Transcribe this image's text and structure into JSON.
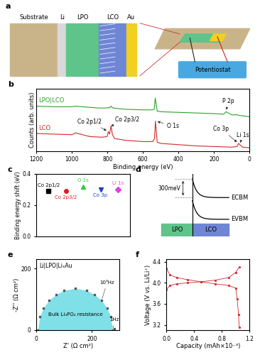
{
  "diagrams": [
    {
      "panel": "a",
      "type": "diagram",
      "layers": [
        {
          "label": "Substrate",
          "color": "#c9b48a"
        },
        {
          "label": "Li",
          "color": "#d9d9d9"
        },
        {
          "label": "LPO",
          "color": "#5fc48a"
        },
        {
          "label": "LCO",
          "color": "#6f86d6"
        },
        {
          "label": "Au",
          "color": "#f0d020"
        }
      ],
      "instrument": {
        "label": "Potentiostat",
        "color": "#4aa8e0"
      }
    },
    {
      "panel": "d",
      "type": "diagram",
      "levels": [
        "ECBM",
        "EVBM"
      ],
      "gap_label": "300meV",
      "regions": [
        {
          "label": "LPO",
          "color": "#5fc48a"
        },
        {
          "label": "LCO",
          "color": "#6f86d6"
        }
      ]
    }
  ],
  "chart_data": [
    {
      "panel": "b",
      "type": "line",
      "x_label": "Binding energy (eV)",
      "y_label": "Counts (arb. units)",
      "xlim": [
        1200,
        0
      ],
      "xticks": [
        1200,
        1000,
        800,
        600,
        400,
        200,
        0
      ],
      "ylim": [
        0,
        100
      ],
      "yticks": [],
      "tick_labels": "x",
      "series": [
        {
          "name": "LPO|LCO",
          "color": "#2ca02c",
          "x": [
            0,
            55,
            70,
            100,
            133,
            145,
            200,
            300,
            400,
            500,
            520,
            531,
            537,
            545,
            600,
            700,
            770,
            780,
            790,
            796,
            802,
            850,
            900,
            980,
            1000,
            1100,
            1200
          ],
          "values": [
            55,
            57,
            58,
            58,
            63,
            59,
            60,
            61,
            62,
            63,
            64,
            85,
            67,
            66,
            66,
            67,
            69,
            72,
            69,
            70,
            69,
            69,
            70,
            72,
            71,
            71,
            72
          ]
        },
        {
          "name": "LCO",
          "color": "#d62728",
          "x": [
            0,
            40,
            55,
            62,
            70,
            100,
            200,
            300,
            400,
            500,
            520,
            530,
            535,
            545,
            600,
            700,
            760,
            772,
            780,
            788,
            795,
            802,
            830,
            900,
            980,
            1000,
            1100,
            1200
          ],
          "values": [
            5,
            6,
            10,
            12,
            7,
            6,
            7,
            8,
            10,
            12,
            14,
            48,
            20,
            15,
            15,
            17,
            20,
            26,
            40,
            27,
            31,
            23,
            22,
            23,
            29,
            26,
            27,
            28
          ]
        }
      ],
      "annotations": [
        {
          "text": "Co 2p1/2",
          "x": 795,
          "y": 31,
          "text_x": 900,
          "text_y": 42
        },
        {
          "text": "Co 2p3/2",
          "x": 780,
          "y": 40,
          "text_x": 690,
          "text_y": 45
        },
        {
          "text": "O 1s",
          "x": 530,
          "y": 48,
          "text_x": 430,
          "text_y": 35
        },
        {
          "text": "P 2p",
          "x": 133,
          "y": 63,
          "text_x": 120,
          "text_y": 75
        },
        {
          "text": "Co 3p",
          "x": 62,
          "y": 12,
          "text_x": 160,
          "text_y": 30
        },
        {
          "text": "Li 1s",
          "x": 55,
          "y": 10,
          "text_x": 40,
          "text_y": 20
        }
      ]
    },
    {
      "panel": "c",
      "type": "scatter",
      "y_label": "Binding energy shift (eV)",
      "categories": [
        "Co 2p1/2",
        "Co 2p3/2",
        "O 1s",
        "Co 3p",
        "Li 1s"
      ],
      "values": [
        0.29,
        0.29,
        0.32,
        0.3,
        0.3
      ],
      "colors": [
        "#000000",
        "#e31a1c",
        "#2ecc40",
        "#1f3fbf",
        "#e040e0"
      ],
      "markers": [
        "square",
        "circle",
        "triangle_up",
        "triangle_down",
        "diamond"
      ],
      "ylim": [
        0.0,
        0.4
      ],
      "yticks": [
        0.0,
        0.2,
        0.4
      ],
      "tick_labels": "y"
    },
    {
      "panel": "e",
      "type": "scatter",
      "title": "Li|LPO|LiₓAu",
      "x_label": "Z' (Ω cm²)",
      "y_label": "-Z'' (Ω cm²)",
      "x": [
        5,
        12,
        25,
        45,
        70,
        100,
        140,
        180,
        210,
        235,
        255,
        268,
        275,
        280
      ],
      "values": [
        0,
        43,
        71,
        96,
        115,
        129,
        135,
        129,
        115,
        96,
        71,
        43,
        0,
        5
      ],
      "color": "#555555",
      "fill_color": "#7fe0e8",
      "xlim": [
        0,
        300
      ],
      "xticks": [
        0,
        200
      ],
      "ylim": [
        0,
        230
      ],
      "yticks": [
        0,
        200
      ],
      "annotations": [
        {
          "text": "10³Hz",
          "x": 235,
          "y": 96,
          "text_x": 255,
          "text_y": 150
        },
        {
          "text": "1Hz",
          "x": 275,
          "y": 0,
          "text_x": 282,
          "text_y": 30
        },
        {
          "text": "Bulk Li₃PO₄ resistance",
          "x": 140,
          "y": 50
        }
      ]
    },
    {
      "panel": "f",
      "type": "line",
      "x_label": "Capacity (mAh×10⁻³)",
      "y_label": "Voltage (V vs. Li/Li⁺)",
      "xlim": [
        0.0,
        1.2
      ],
      "xticks": [
        0.0,
        0.4,
        0.8,
        1.2
      ],
      "ylim": [
        3.1,
        4.45
      ],
      "yticks": [
        3.2,
        3.6,
        4.0,
        4.4
      ],
      "series": [
        {
          "color": "#d62728",
          "marker": "dot",
          "x": [
            0,
            0.05,
            0.15,
            0.3,
            0.5,
            0.7,
            0.9,
            1.0,
            1.05
          ],
          "values": [
            3.87,
            3.95,
            3.98,
            4.0,
            4.02,
            4.05,
            4.1,
            4.2,
            4.3
          ]
        },
        {
          "color": "#d62728",
          "marker": "dot",
          "x": [
            0,
            0.05,
            0.15,
            0.3,
            0.5,
            0.7,
            0.9,
            1.0,
            1.02,
            1.04,
            1.05
          ],
          "values": [
            4.28,
            4.15,
            4.1,
            4.06,
            4.02,
            3.98,
            3.95,
            3.9,
            3.7,
            3.4,
            3.15
          ]
        }
      ]
    }
  ]
}
